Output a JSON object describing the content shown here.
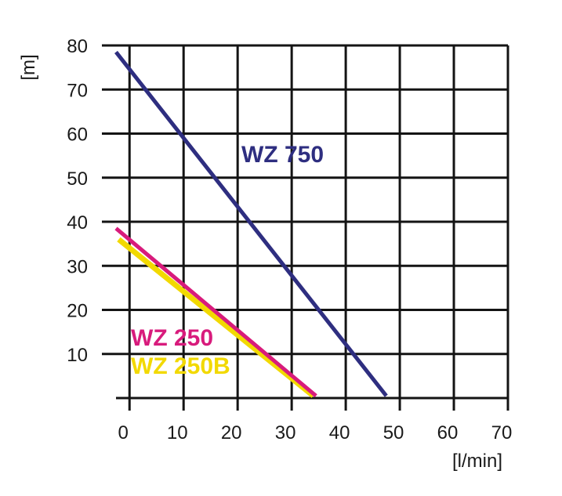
{
  "chart_data": {
    "type": "line",
    "title": "",
    "xlabel": "[l/min]",
    "ylabel": "[m]",
    "xlim": [
      -2.5,
      70
    ],
    "ylim": [
      0,
      80
    ],
    "x_ticks": [
      0,
      10,
      20,
      30,
      40,
      50,
      60,
      70
    ],
    "y_ticks": [
      10,
      20,
      30,
      40,
      50,
      60,
      70,
      80
    ],
    "x_tick_labels": [
      "0",
      "10",
      "20",
      "30",
      "40",
      "50",
      "60",
      "70"
    ],
    "y_tick_labels": [
      "10",
      "20",
      "30",
      "40",
      "50",
      "60",
      "70",
      "80"
    ],
    "grid": true,
    "legend": "none",
    "series": [
      {
        "name": "WZ 750",
        "color": "#2e2e80",
        "x": [
          -2.5,
          47.5
        ],
        "y": [
          78.5,
          0.5
        ]
      },
      {
        "name": "WZ 250",
        "color": "#d81b7c",
        "x": [
          -2.5,
          34.5
        ],
        "y": [
          38.5,
          0.5
        ]
      },
      {
        "name": "WZ 250B",
        "color": "#f2d900",
        "x": [
          -2,
          34
        ],
        "y": [
          36,
          0.5
        ]
      }
    ]
  }
}
